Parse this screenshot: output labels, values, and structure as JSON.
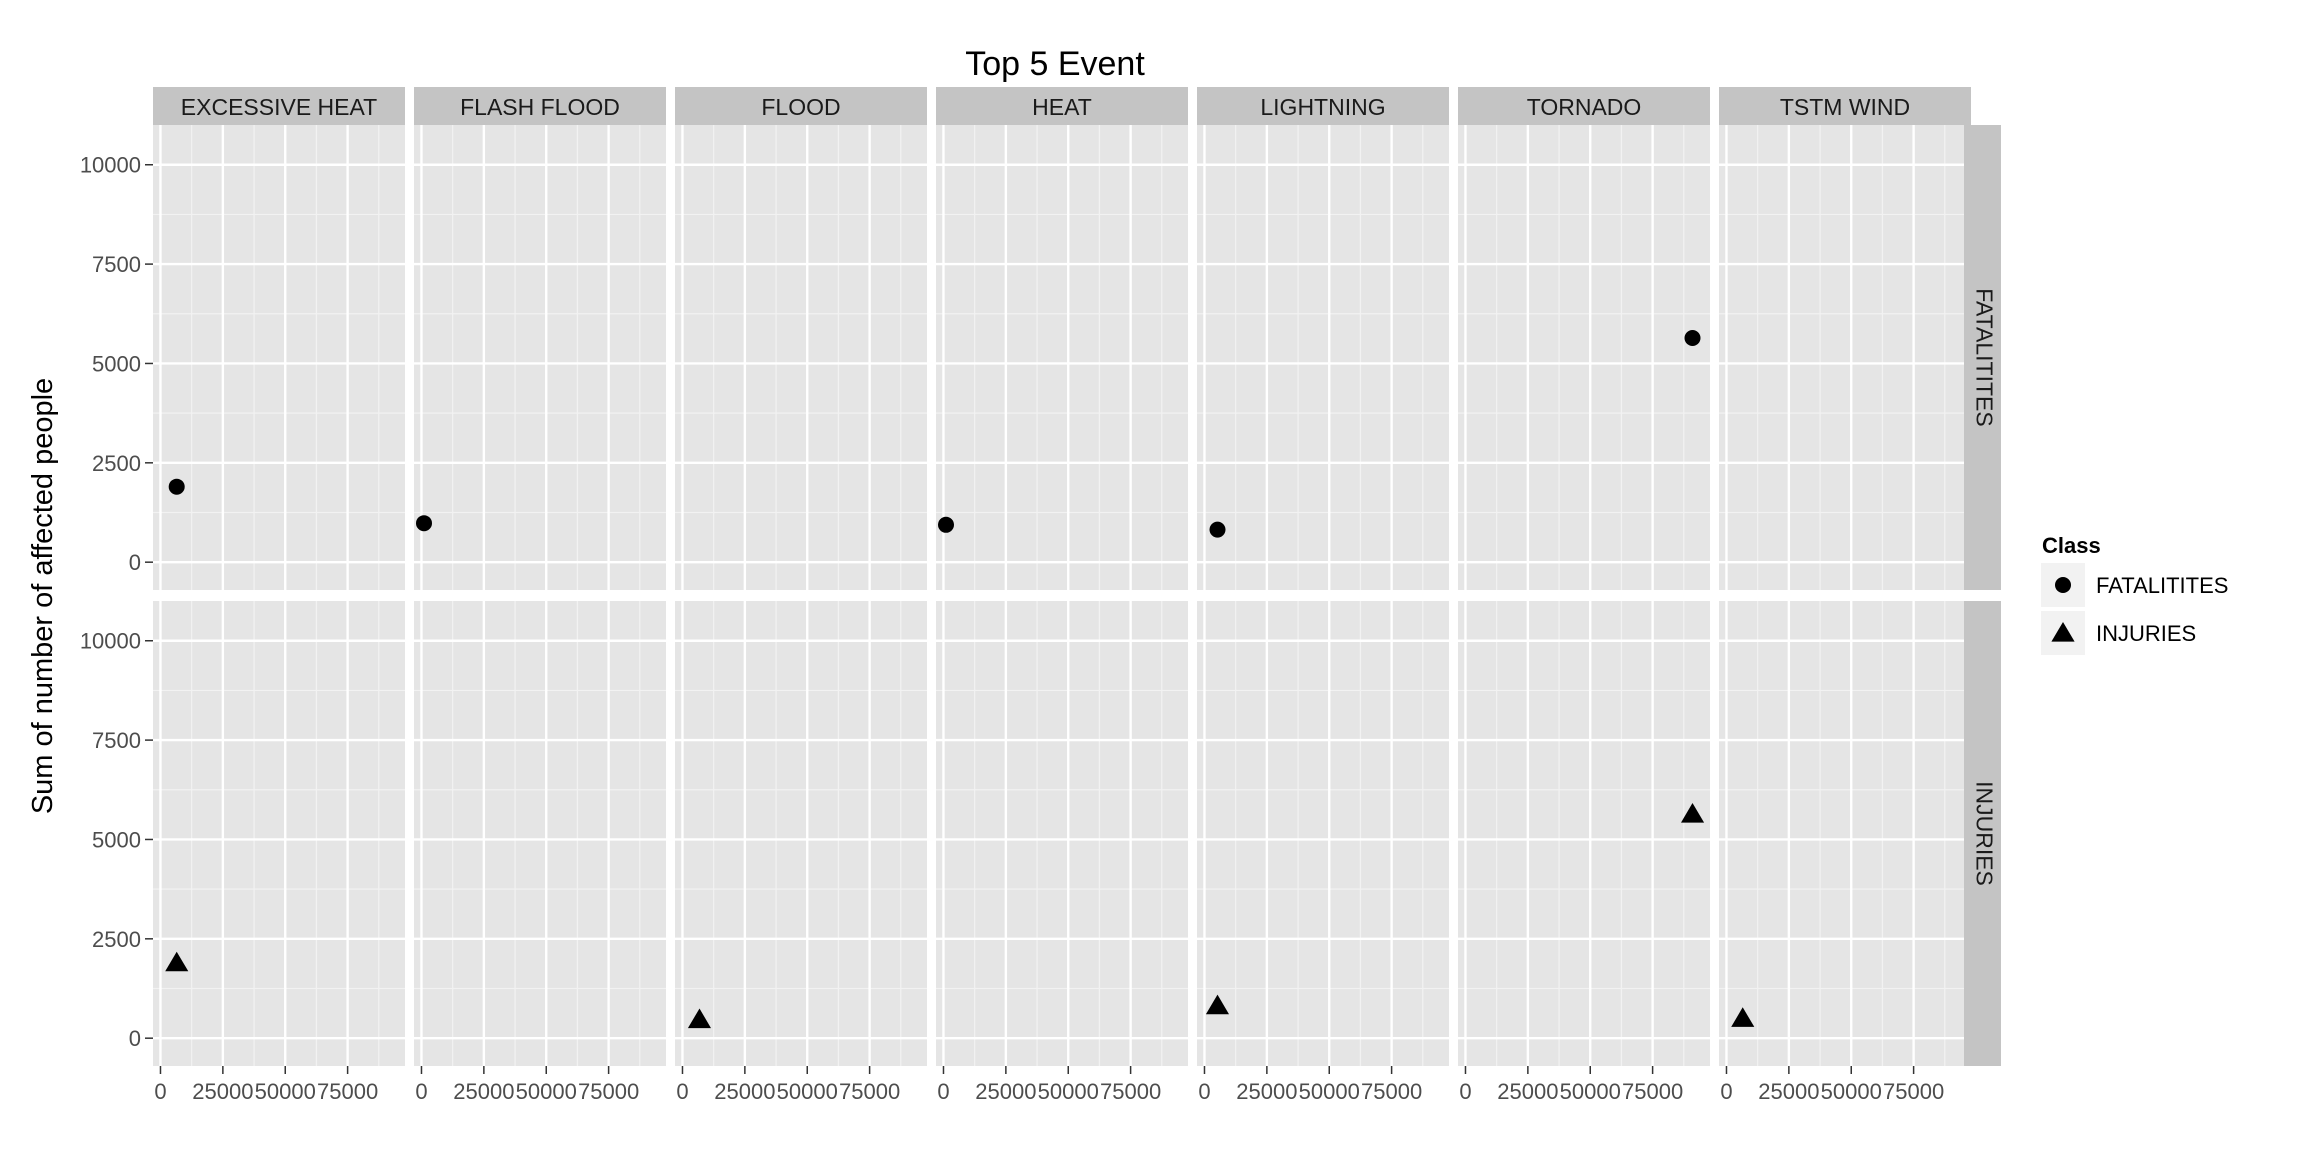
{
  "chart_data": {
    "type": "scatter",
    "title": "Top 5 Event",
    "xlabel": "",
    "ylabel": "Sum of number of affected people",
    "facet_columns": [
      "EXCESSIVE HEAT",
      "FLASH FLOOD",
      "FLOOD",
      "HEAT",
      "LIGHTNING",
      "TORNADO",
      "TSTM WIND"
    ],
    "facet_rows": [
      "FATALITITES",
      "INJURIES"
    ],
    "x_ticks": [
      0,
      25000,
      50000,
      75000
    ],
    "x_tick_labels": [
      "0",
      "25000",
      "50000",
      "75000"
    ],
    "y_ticks": [
      0,
      2500,
      5000,
      7500,
      10000
    ],
    "y_tick_labels": [
      "0",
      "2500",
      "5000",
      "7500",
      "10000"
    ],
    "xlim": [
      -3000,
      98000
    ],
    "ylim": [
      -700,
      11000
    ],
    "grid": true,
    "legend_position": "right",
    "legend": {
      "title": "Class",
      "items": [
        {
          "label": "FATALITITES",
          "shape": "circle"
        },
        {
          "label": "INJURIES",
          "shape": "triangle"
        }
      ]
    },
    "series": [
      {
        "name": "FATALITITES",
        "shape": "circle",
        "points": [
          {
            "panel": "EXCESSIVE HEAT",
            "x": 6500,
            "y": 1900
          },
          {
            "panel": "FLASH FLOOD",
            "x": 1000,
            "y": 980
          },
          {
            "panel": "HEAT",
            "x": 1000,
            "y": 940
          },
          {
            "panel": "LIGHTNING",
            "x": 5200,
            "y": 820
          },
          {
            "panel": "TORNADO",
            "x": 91000,
            "y": 5640
          }
        ]
      },
      {
        "name": "INJURIES",
        "shape": "triangle",
        "points": [
          {
            "panel": "EXCESSIVE HEAT",
            "x": 6500,
            "y": 1900
          },
          {
            "panel": "FLOOD",
            "x": 6800,
            "y": 470
          },
          {
            "panel": "LIGHTNING",
            "x": 5200,
            "y": 820
          },
          {
            "panel": "TORNADO",
            "x": 91000,
            "y": 5640
          },
          {
            "panel": "TSTM WIND",
            "x": 6500,
            "y": 500
          }
        ]
      }
    ],
    "colors": {
      "panel_bg": "#e5e5e5",
      "strip_bg": "#c4c4c4",
      "grid_major": "#ffffff",
      "grid_minor": "#f2f2f2",
      "point": "#000000",
      "legend_key_bg": "#f2f2f2"
    }
  }
}
